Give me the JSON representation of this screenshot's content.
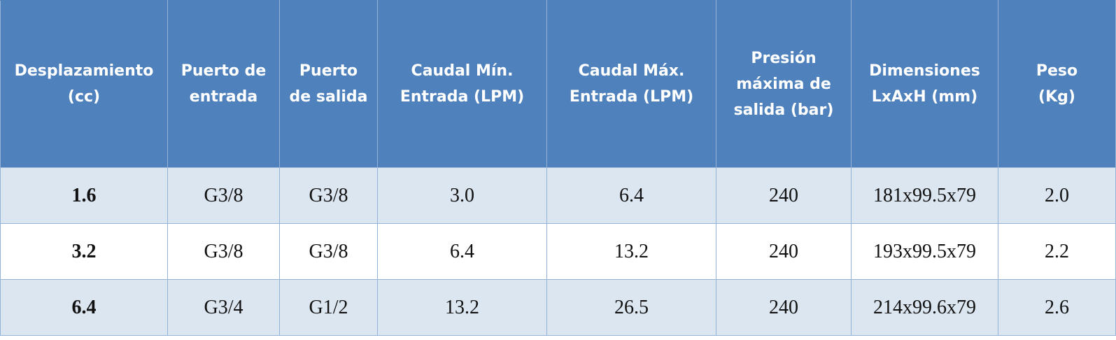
{
  "table": {
    "headers": [
      [
        "Desplazamiento",
        "(cc)"
      ],
      [
        "Puerto de",
        "entrada"
      ],
      [
        "Puerto",
        "de salida"
      ],
      [
        "Caudal Mín.",
        "Entrada (LPM)"
      ],
      [
        "Caudal Máx.",
        "Entrada (LPM)"
      ],
      [
        "Presión",
        "máxima de",
        "salida (bar)"
      ],
      [
        "Dimensiones",
        "LxAxH (mm)"
      ],
      [
        "Peso",
        "(Kg)"
      ]
    ],
    "rows": [
      [
        "1.6",
        "G3/8",
        "G3/8",
        "3.0",
        "6.4",
        "240",
        "181x99.5x79",
        "2.0"
      ],
      [
        "3.2",
        "G3/8",
        "G3/8",
        "6.4",
        "13.2",
        "240",
        "193x99.5x79",
        "2.2"
      ],
      [
        "6.4",
        "G3/4",
        "G1/2",
        "13.2",
        "26.5",
        "240",
        "214x99.6x79",
        "2.6"
      ]
    ]
  },
  "colors": {
    "header_bg": "#4f81bd",
    "header_text": "#ffffff",
    "band_row_bg": "#dce6f1",
    "border": "#95b3d7"
  }
}
